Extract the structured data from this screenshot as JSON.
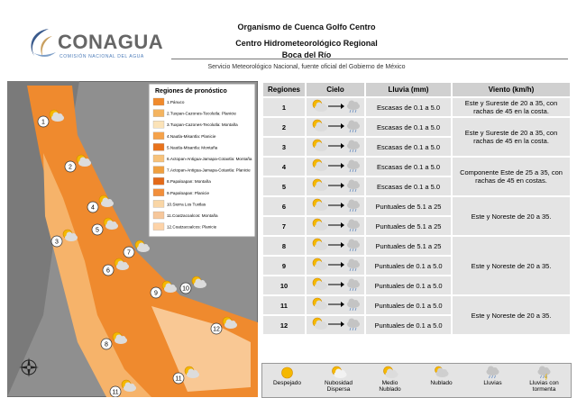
{
  "header": {
    "logo": "CONAGUA",
    "logo_subtitle": "COMISIÓN NACIONAL DEL AGUA",
    "title": "Organismo de Cuenca Golfo Centro",
    "subtitle": "Centro Hidrometeorológico Regional",
    "location": "Boca del Río",
    "source": "Servicio Meteorológico Nacional, fuente oficial del Gobierno de México"
  },
  "map": {
    "legend_title": "Regiones de pronóstico",
    "legend": [
      {
        "label": "1.Pánuco",
        "color": "#f08a2c"
      },
      {
        "label": "2.Tuxpan-Cazones-Tecolutla: Planicie",
        "color": "#f4b460"
      },
      {
        "label": "3.Tuxpan-Cazones-Tecolutla: Montaña",
        "color": "#fbe3b8"
      },
      {
        "label": "4.Nautla-Misantla: Planicie",
        "color": "#f5a24a"
      },
      {
        "label": "5.Nautla-Misantla: Montaña",
        "color": "#e8721c"
      },
      {
        "label": "6.Actopan-Antigua-Jamapa-Cotaxtla: Montaña",
        "color": "#f7c27a"
      },
      {
        "label": "7.Actopan-Antigua-Jamapa-Cotaxtla: Planicie",
        "color": "#f0a040"
      },
      {
        "label": "8.Papaloapan: Montaña",
        "color": "#e36a1a"
      },
      {
        "label": "9.Papaloapan: Planicie",
        "color": "#f28f3b"
      },
      {
        "label": "10.Sierra Los Tuxtlas",
        "color": "#f9d6a6"
      },
      {
        "label": "11.Coatzacoalcos: Montaña",
        "color": "#f6c79b"
      },
      {
        "label": "12.Coatzacoalcos: Planicie",
        "color": "#fdd3a8"
      }
    ],
    "markers": [
      "1",
      "2",
      "3",
      "4",
      "5",
      "6",
      "7",
      "8",
      "9",
      "10",
      "12",
      "11",
      "11"
    ]
  },
  "table": {
    "headers": [
      "Regiones",
      "Cielo",
      "Lluvia (mm)",
      "Viento (km/h)"
    ],
    "rows": [
      {
        "region": "1",
        "lluvia": "Escasas de 0.1 a 5.0",
        "viento": "Este y Sureste de 20 a 35, con rachas de 45 en la costa."
      },
      {
        "region": "2",
        "lluvia": "Escasas de 0.1 a 5.0",
        "viento": "Este y Sureste de 20 a 35, con rachas de 45 en la costa."
      },
      {
        "region": "3",
        "lluvia": "Escasas de 0.1 a 5.0"
      },
      {
        "region": "4",
        "lluvia": "Escasas de 0.1 a 5.0",
        "viento": "Componente Este de 25 a 35, con rachas de 45 en costas."
      },
      {
        "region": "5",
        "lluvia": "Escasas de 0.1 a 5.0"
      },
      {
        "region": "6",
        "lluvia": "Puntuales de 5.1 a 25",
        "viento": "Este y Noreste de 20 a 35."
      },
      {
        "region": "7",
        "lluvia": "Puntuales de 5.1 a 25"
      },
      {
        "region": "8",
        "lluvia": "Puntuales de 5.1 a 25",
        "viento": "Este y Noreste de 20 a 35."
      },
      {
        "region": "9",
        "lluvia": "Puntuales de 0.1 a 5.0"
      },
      {
        "region": "10",
        "lluvia": "Puntuales de 0.1 a 5.0"
      },
      {
        "region": "11",
        "lluvia": "Puntuales de 0.1 a 5.0",
        "viento": "Este y Noreste de 20 a 35."
      },
      {
        "region": "12",
        "lluvia": "Puntuales de 0.1 a 5.0"
      }
    ]
  },
  "icon_legend": [
    "Despejado",
    "Nubosidad Dispersa",
    "Medio Nublado",
    "Nublado",
    "Lluvias",
    "Lluvias con tormenta"
  ]
}
